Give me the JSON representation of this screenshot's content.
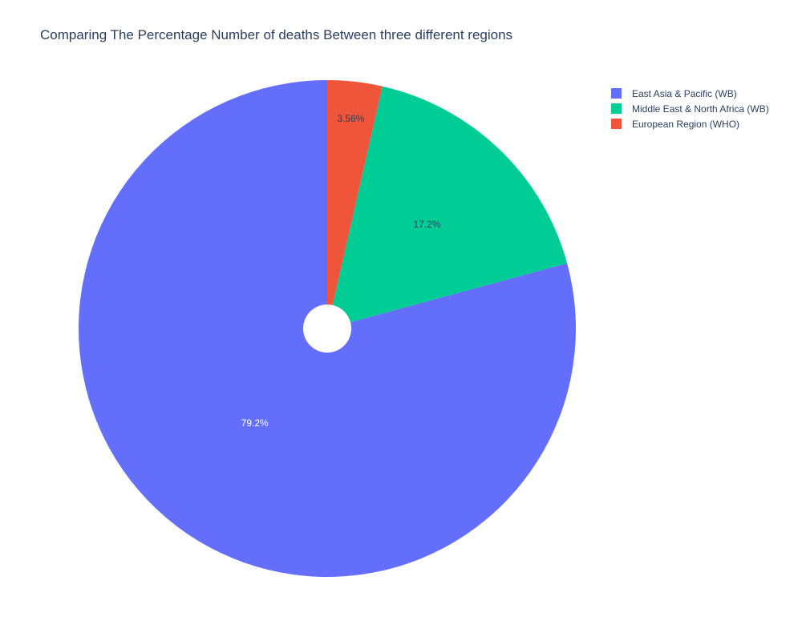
{
  "chart_data": {
    "type": "pie",
    "title": "Comparing The Percentage Number of deaths Between three different regions",
    "hole": true,
    "start": "top",
    "direction": "counterclockwise",
    "slices": [
      {
        "name": "East Asia & Pacific (WB)",
        "percent": 79.2,
        "label": "79.2%",
        "color": "#636efa",
        "label_color": "#ffffff"
      },
      {
        "name": "Middle East & North Africa (WB)",
        "percent": 17.2,
        "label": "17.2%",
        "color": "#00cc96",
        "label_color": "#2a3f5f"
      },
      {
        "name": "European Region (WHO)",
        "percent": 3.56,
        "label": "3.56%",
        "color": "#ef553b",
        "label_color": "#2a3f5f"
      }
    ],
    "legend_position": "top-right"
  }
}
